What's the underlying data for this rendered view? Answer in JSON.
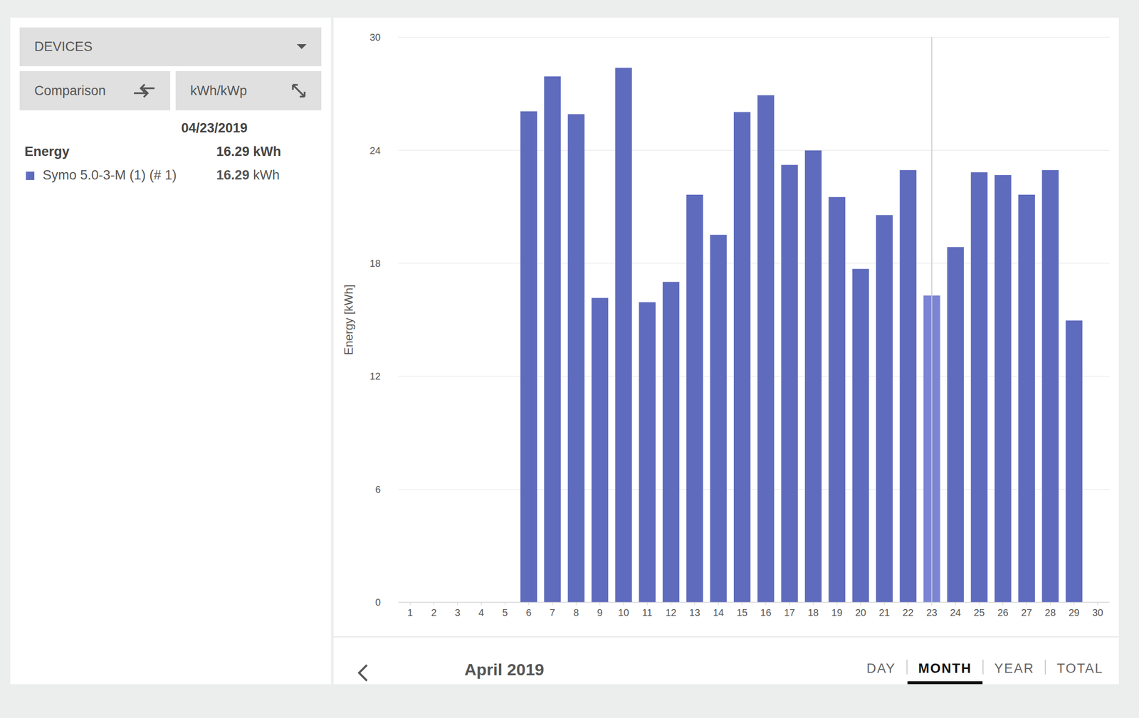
{
  "panel": {
    "dropdown": "DEVICES",
    "buttons": [
      "Comparison",
      "kWh/kWp"
    ],
    "date": "04/23/2019",
    "total": {
      "label": "Energy",
      "value": 16.29,
      "unit": "kWh"
    },
    "devices": [
      {
        "name": "Symo 5.0-3-M (1) (# 1)",
        "value": 16.29,
        "unit": "kWh",
        "color": "#5f6bbd"
      }
    ]
  },
  "footer": {
    "period": "April 2019",
    "tabs": [
      "DAY",
      "MONTH",
      "YEAR",
      "TOTAL"
    ],
    "active_tab": "MONTH"
  },
  "chart_data": {
    "type": "bar",
    "y_label": "Energy [kWh]",
    "categories": [
      "1",
      "2",
      "3",
      "4",
      "5",
      "6",
      "7",
      "8",
      "9",
      "10",
      "11",
      "12",
      "13",
      "14",
      "15",
      "16",
      "17",
      "18",
      "19",
      "20",
      "21",
      "22",
      "23",
      "24",
      "25",
      "26",
      "27",
      "28",
      "29",
      "30"
    ],
    "values": [
      null,
      null,
      null,
      null,
      null,
      26.07,
      27.92,
      25.92,
      16.16,
      28.38,
      15.93,
      17.01,
      21.64,
      19.51,
      26.03,
      26.92,
      23.22,
      23.99,
      21.52,
      17.7,
      20.56,
      22.95,
      16.29,
      18.86,
      22.83,
      22.68,
      21.64,
      22.95,
      14.96,
      null
    ],
    "colors": [
      "#5f6bbd",
      "#5f6bbd",
      "#5f6bbd",
      "#5f6bbd",
      "#5f6bbd",
      "#5f6bbd",
      "#5f6bbd",
      "#5f6bbd",
      "#5f6bbd",
      "#5f6bbd",
      "#5f6bbd",
      "#5f6bbd",
      "#5f6bbd",
      "#5f6bbd",
      "#5f6bbd",
      "#5f6bbd",
      "#5f6bbd",
      "#5f6bbd",
      "#5f6bbd",
      "#5f6bbd",
      "#5f6bbd",
      "#5f6bbd",
      "#7b85d4",
      "#5f6bbd",
      "#5f6bbd",
      "#5f6bbd",
      "#5f6bbd",
      "#5f6bbd",
      "#5f6bbd",
      "#5f6bbd"
    ],
    "ylim": [
      0,
      30
    ],
    "yticks": [
      0,
      6,
      12,
      18,
      24,
      30
    ],
    "grid": true
  }
}
